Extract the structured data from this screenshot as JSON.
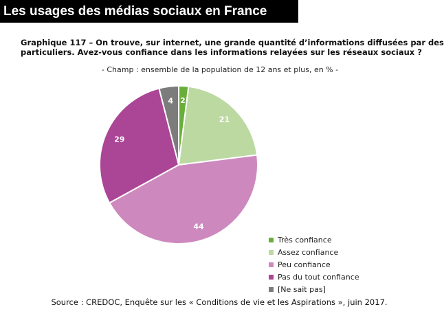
{
  "slide": {
    "title": "Les usages des médias sociaux en France"
  },
  "chart_data": {
    "type": "pie",
    "title_lines": [
      "Graphique 117 – On trouve, sur internet, une grande quantité d’informations diffusées par des",
      "particuliers. Avez-vous confiance dans les informations relayées sur les réseaux sociaux ?"
    ],
    "subtitle": "- Champ : ensemble de la population de 12 ans et plus, en % -",
    "slices": [
      {
        "label": "Très confiance",
        "value": 2,
        "color": "#6aae3a"
      },
      {
        "label": "Assez confiance",
        "value": 21,
        "color": "#bcd9a2"
      },
      {
        "label": "Peu confiance",
        "value": 44,
        "color": "#cd89be"
      },
      {
        "label": "Pas du tout confiance",
        "value": 29,
        "color": "#ab4596"
      },
      {
        "label": "[Ne sait pas]",
        "value": 4,
        "color": "#7c7c7c"
      }
    ],
    "legend_position": "bottom-right",
    "source": "Source : CREDOC, Enquête sur les « Conditions de vie et les Aspirations », juin 2017."
  }
}
